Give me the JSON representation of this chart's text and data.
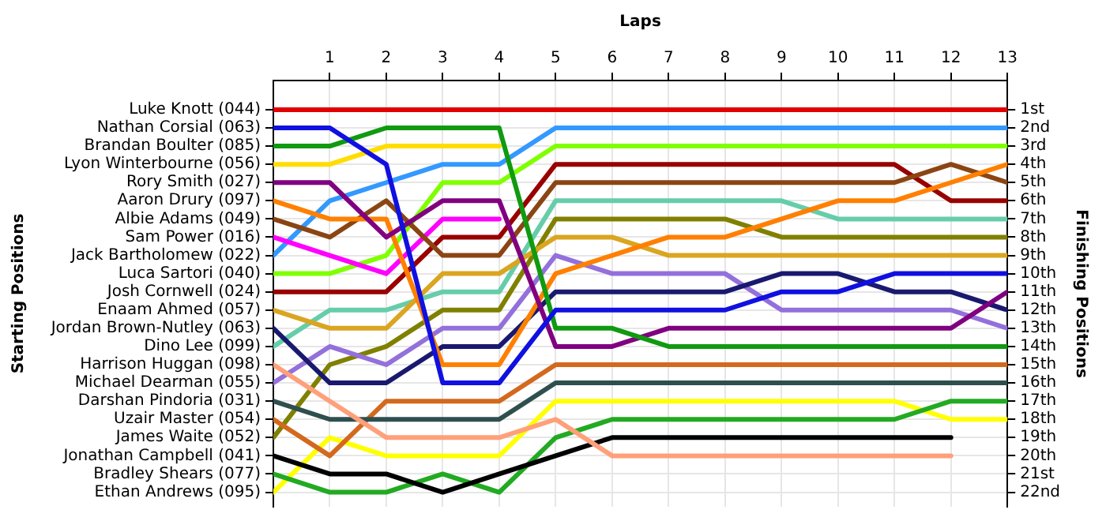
{
  "chart_data": {
    "type": "line",
    "xlabel": "Laps",
    "ylabel": "Finishing Positions",
    "x": [
      0,
      1,
      2,
      3,
      4,
      5,
      6,
      7,
      8,
      9,
      10,
      11,
      12,
      13
    ],
    "xlim": [
      0,
      13
    ],
    "xticks": [
      1,
      2,
      3,
      4,
      5,
      6,
      7,
      8,
      9,
      10,
      11,
      12,
      13
    ],
    "ylim": [
      22.8,
      -0.6
    ],
    "yticks": [
      {
        "value": 1,
        "label": "1st"
      },
      {
        "value": 2,
        "label": "2nd"
      },
      {
        "value": 3,
        "label": "3rd"
      },
      {
        "value": 4,
        "label": "4th"
      },
      {
        "value": 5,
        "label": "5th"
      },
      {
        "value": 6,
        "label": "6th"
      },
      {
        "value": 7,
        "label": "7th"
      },
      {
        "value": 8,
        "label": "8th"
      },
      {
        "value": 9,
        "label": "9th"
      },
      {
        "value": 10,
        "label": "10th"
      },
      {
        "value": 11,
        "label": "11th"
      },
      {
        "value": 12,
        "label": "12th"
      },
      {
        "value": 13,
        "label": "13th"
      },
      {
        "value": 14,
        "label": "14th"
      },
      {
        "value": 15,
        "label": "15th"
      },
      {
        "value": 16,
        "label": "16th"
      },
      {
        "value": 17,
        "label": "17th"
      },
      {
        "value": 18,
        "label": "18th"
      },
      {
        "value": 19,
        "label": "19th"
      },
      {
        "value": 20,
        "label": "20th"
      },
      {
        "value": 21,
        "label": "21st"
      },
      {
        "value": 22,
        "label": "22nd"
      }
    ],
    "annotations": [
      "Starting Positions",
      "Luke Knott (044)",
      "Nathan Corsial (063)",
      "Brandan Boulter (085)",
      "Lyon Winterbourne (056)",
      "Rory Smith (027)",
      "Aaron Drury (097)",
      "Albie Adams (049)",
      "Sam Power (016)",
      "Jack Bartholomew (022)",
      "Luca Sartori (040)",
      "Josh Cornwell (024)",
      "Enaam Ahmed (057)",
      "Jordan Brown-Nutley (063)",
      "Dino Lee (099)",
      "Harrison Huggan (098)",
      "Michael Dearman (055)",
      "Darshan Pindoria (031)",
      "Uzair Master (054)",
      "James Waite (052)",
      "Jonathan Campbell (041)",
      "Bradley Shears (077)",
      "Ethan Andrews (095)"
    ],
    "grid": true,
    "marker": "none",
    "line_style": "solid",
    "series": [
      {
        "color": "#e00000",
        "values": [
          1,
          1,
          1,
          1,
          1,
          1,
          1,
          1,
          1,
          1,
          1,
          1,
          1,
          1
        ]
      },
      {
        "color": "#1010e0",
        "values": [
          2,
          2,
          4,
          16,
          16,
          12,
          12,
          12,
          12,
          11,
          11,
          10,
          10,
          10
        ]
      },
      {
        "color": "#109a10",
        "values": [
          3,
          3,
          2,
          2,
          2,
          13,
          13,
          14,
          14,
          14,
          14,
          14,
          14,
          14
        ]
      },
      {
        "color": "#ffdd00",
        "values": [
          4,
          4,
          3,
          3,
          3,
          null,
          null,
          null,
          null,
          null,
          null,
          null,
          null,
          null
        ]
      },
      {
        "color": "#800080",
        "values": [
          5,
          5,
          8,
          6,
          6,
          14,
          14,
          13,
          13,
          13,
          13,
          13,
          13,
          11
        ]
      },
      {
        "color": "#ff8000",
        "values": [
          6,
          7,
          7,
          15,
          15,
          10,
          9,
          8,
          8,
          7,
          6,
          6,
          5,
          4
        ]
      },
      {
        "color": "#8b4513",
        "values": [
          7,
          8,
          6,
          9,
          9,
          5,
          5,
          5,
          5,
          5,
          5,
          5,
          4,
          5
        ]
      },
      {
        "color": "#ff00ff",
        "values": [
          8,
          9,
          10,
          7,
          7,
          null,
          null,
          null,
          null,
          null,
          null,
          null,
          null,
          null
        ]
      },
      {
        "color": "#3399ff",
        "values": [
          9,
          6,
          5,
          4,
          4,
          2,
          2,
          2,
          2,
          2,
          2,
          2,
          2,
          2
        ]
      },
      {
        "color": "#80ff00",
        "values": [
          10,
          10,
          9,
          5,
          5,
          3,
          3,
          3,
          3,
          3,
          3,
          3,
          3,
          3
        ]
      },
      {
        "color": "#990000",
        "values": [
          11,
          11,
          11,
          8,
          8,
          4,
          4,
          4,
          4,
          4,
          4,
          4,
          6,
          6
        ]
      },
      {
        "color": "#daa520",
        "values": [
          12,
          13,
          13,
          10,
          10,
          8,
          8,
          9,
          9,
          9,
          9,
          9,
          9,
          9
        ]
      },
      {
        "color": "#191970",
        "values": [
          13,
          16,
          16,
          14,
          14,
          11,
          11,
          11,
          11,
          10,
          10,
          11,
          11,
          12
        ]
      },
      {
        "color": "#66cdaa",
        "values": [
          14,
          12,
          12,
          11,
          11,
          6,
          6,
          6,
          6,
          6,
          7,
          7,
          7,
          7
        ]
      },
      {
        "color": "#ffa07a",
        "values": [
          15,
          17,
          19,
          19,
          19,
          18,
          20,
          20,
          20,
          20,
          20,
          20,
          20,
          null
        ]
      },
      {
        "color": "#9370db",
        "values": [
          16,
          14,
          15,
          13,
          13,
          9,
          10,
          10,
          10,
          12,
          12,
          12,
          12,
          13
        ]
      },
      {
        "color": "#2f4f4f",
        "values": [
          17,
          18,
          18,
          18,
          18,
          16,
          16,
          16,
          16,
          16,
          16,
          16,
          16,
          16
        ]
      },
      {
        "color": "#d2691e",
        "values": [
          18,
          20,
          17,
          17,
          17,
          15,
          15,
          15,
          15,
          15,
          15,
          15,
          15,
          15
        ]
      },
      {
        "color": "#808000",
        "values": [
          19,
          15,
          14,
          12,
          12,
          7,
          7,
          7,
          7,
          8,
          8,
          8,
          8,
          8
        ]
      },
      {
        "color": "#000000",
        "values": [
          20,
          21,
          21,
          22,
          21,
          20,
          19,
          19,
          19,
          19,
          19,
          19,
          19,
          null
        ]
      },
      {
        "color": "#22aa22",
        "values": [
          21,
          22,
          22,
          21,
          22,
          19,
          18,
          18,
          18,
          18,
          18,
          18,
          17,
          17
        ]
      },
      {
        "color": "#ffff00",
        "values": [
          22,
          19,
          20,
          20,
          20,
          17,
          17,
          17,
          17,
          17,
          17,
          17,
          18,
          18
        ]
      }
    ]
  }
}
